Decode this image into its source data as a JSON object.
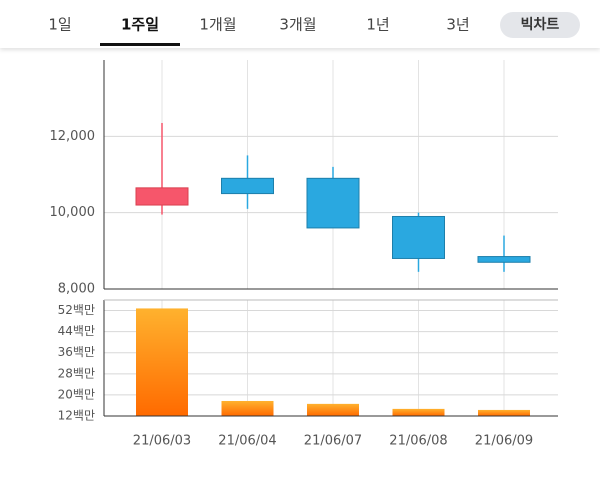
{
  "tabs": {
    "items": [
      "1일",
      "1주일",
      "1개월",
      "3개월",
      "1년",
      "3년",
      "빅차트"
    ],
    "active": 1
  },
  "chart_data": [
    {
      "type": "candlestick",
      "up_color": "#f6566b",
      "down_color": "#2aa8e0",
      "open": [
        10200,
        10900,
        10900,
        9900,
        8850
      ],
      "high": [
        12350,
        11500,
        11200,
        10000,
        9400
      ],
      "low": [
        9950,
        10100,
        9600,
        8450,
        8450
      ],
      "close": [
        10650,
        10500,
        9600,
        8800,
        8700
      ],
      "ylim": [
        8000,
        14000
      ],
      "yticks": [
        {
          "value": 8000,
          "label": "8,000"
        },
        {
          "value": 10000,
          "label": "10,000"
        },
        {
          "value": 12000,
          "label": "12,000"
        }
      ],
      "grid": true
    },
    {
      "type": "bar",
      "categories": [
        "21/06/03",
        "21/06/04",
        "21/06/07",
        "21/06/08",
        "21/06/09"
      ],
      "values": [
        52.8,
        17.7,
        16.6,
        14.7,
        14.3
      ],
      "colors": [
        "#ffb22e",
        "#ff6a00"
      ],
      "ylim": [
        12,
        56
      ],
      "yticks": [
        {
          "value": 12,
          "label": "12백만"
        },
        {
          "value": 20,
          "label": "20백만"
        },
        {
          "value": 28,
          "label": "28백만"
        },
        {
          "value": 36,
          "label": "36백만"
        },
        {
          "value": 44,
          "label": "44백만"
        },
        {
          "value": 52,
          "label": "52백만"
        }
      ],
      "grid": true
    }
  ]
}
